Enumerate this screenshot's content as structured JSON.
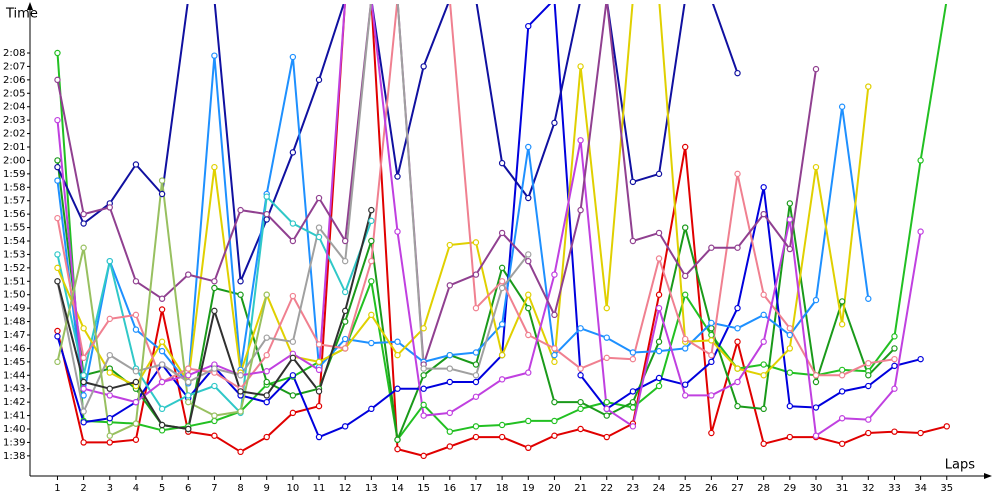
{
  "chart_data": {
    "type": "line",
    "y_label": "Time",
    "x_label": "Laps",
    "x": [
      1,
      2,
      3,
      4,
      5,
      6,
      7,
      8,
      9,
      10,
      11,
      12,
      13,
      14,
      15,
      16,
      17,
      18,
      19,
      20,
      21,
      22,
      23,
      24,
      25,
      26,
      27,
      28,
      29,
      30,
      31,
      32,
      33,
      34,
      35
    ],
    "xlim": [
      -0.05,
      36.5
    ],
    "xticks": [
      1,
      2,
      3,
      4,
      5,
      6,
      7,
      8,
      9,
      10,
      11,
      12,
      13,
      14,
      15,
      16,
      17,
      18,
      19,
      20,
      21,
      22,
      23,
      24,
      25,
      26,
      27,
      28,
      29,
      30,
      31,
      32,
      33,
      34,
      35
    ],
    "ylim": [
      96.5,
      131.5
    ],
    "yticks": [
      {
        "value": 98,
        "label": "1:38"
      },
      {
        "value": 99,
        "label": "1:39"
      },
      {
        "value": 100,
        "label": "1:40"
      },
      {
        "value": 101,
        "label": "1:41"
      },
      {
        "value": 102,
        "label": "1:42"
      },
      {
        "value": 103,
        "label": "1:43"
      },
      {
        "value": 104,
        "label": "1:44"
      },
      {
        "value": 105,
        "label": "1:45"
      },
      {
        "value": 106,
        "label": "1:46"
      },
      {
        "value": 107,
        "label": "1:47"
      },
      {
        "value": 108,
        "label": "1:48"
      },
      {
        "value": 109,
        "label": "1:49"
      },
      {
        "value": 110,
        "label": "1:50"
      },
      {
        "value": 111,
        "label": "1:51"
      },
      {
        "value": 112,
        "label": "1:52"
      },
      {
        "value": 113,
        "label": "1:53"
      },
      {
        "value": 114,
        "label": "1:54"
      },
      {
        "value": 115,
        "label": "1:55"
      },
      {
        "value": 116,
        "label": "1:56"
      },
      {
        "value": 117,
        "label": "1:57"
      },
      {
        "value": 118,
        "label": "1:58"
      },
      {
        "value": 119,
        "label": "1:59"
      },
      {
        "value": 120,
        "label": "2:00"
      },
      {
        "value": 121,
        "label": "2:01"
      },
      {
        "value": 122,
        "label": "2:02"
      },
      {
        "value": 123,
        "label": "2:03"
      },
      {
        "value": 124,
        "label": "2:04"
      },
      {
        "value": 125,
        "label": "2:05"
      },
      {
        "value": 126,
        "label": "2:06"
      },
      {
        "value": 127,
        "label": "2:07"
      },
      {
        "value": 128,
        "label": "2:08"
      }
    ],
    "series": [
      {
        "color": "#e00000",
        "values": [
          107.3,
          99.0,
          99.0,
          99.2,
          108.9,
          99.8,
          99.5,
          98.3,
          99.4,
          101.2,
          101.7,
          132,
          132,
          98.5,
          98.0,
          98.7,
          99.4,
          99.4,
          98.6,
          99.5,
          100.0,
          99.4,
          100.4,
          110,
          121,
          99.7,
          106.5,
          98.9,
          99.4,
          99.4,
          98.9,
          99.7,
          99.8,
          99.7,
          100.2
        ]
      },
      {
        "color": "#22c022",
        "values": [
          128,
          100.6,
          100.5,
          100.4,
          99.9,
          100.2,
          100.6,
          101.3,
          103.3,
          103.9,
          105.0,
          106.0,
          111,
          99.2,
          101.8,
          99.8,
          100.2,
          100.3,
          100.6,
          100.6,
          101.5,
          102.0,
          101.6,
          103.2,
          110,
          107,
          104.5,
          104.8,
          104.2,
          104.0,
          104.4,
          104.3,
          106.9,
          120,
          132
        ]
      },
      {
        "color": "#1a9a1a",
        "values": [
          120,
          104.0,
          104.5,
          103.0,
          100.3,
          100.0,
          110.5,
          110,
          103.5,
          102.5,
          103.0,
          108,
          114,
          99.2,
          104.0,
          105.5,
          104.8,
          112,
          109,
          102.0,
          102.0,
          101.0,
          102.0,
          106.5,
          115,
          107.5,
          101.7,
          101.5,
          116.8,
          103.5,
          109.5,
          104.0,
          106.0,
          null,
          null
        ]
      },
      {
        "color": "#0000dd",
        "values": [
          106.9,
          100.5,
          100.8,
          102.0,
          104.8,
          102.3,
          104.6,
          102.5,
          102.0,
          104.0,
          99.4,
          100.2,
          101.5,
          103.0,
          103.0,
          103.5,
          103.5,
          105.5,
          130,
          132,
          104.0,
          101.5,
          102.8,
          103.8,
          103.3,
          105.0,
          109.0,
          118,
          101.7,
          101.6,
          102.8,
          103.2,
          104.7,
          105.2,
          null
        ]
      },
      {
        "color": "#1010a0",
        "values": [
          119.5,
          115.3,
          116.8,
          119.7,
          117.5,
          132,
          132,
          111,
          115.6,
          120.6,
          126,
          132,
          132,
          118.8,
          127,
          132,
          132,
          119.8,
          117.2,
          122.8,
          132,
          132,
          118.4,
          119,
          132,
          132,
          126.5,
          null,
          null,
          null,
          null,
          null,
          null,
          null,
          null
        ]
      },
      {
        "color": "#1e90ff",
        "values": [
          118.5,
          102.5,
          112.5,
          107.4,
          105.8,
          103.4,
          127.8,
          104.4,
          117.5,
          127.7,
          104.6,
          106.7,
          106.4,
          106.5,
          105.0,
          105.5,
          105.7,
          107.8,
          121,
          105.5,
          107.5,
          106.8,
          105.7,
          105.8,
          106.0,
          107.9,
          107.5,
          108.5,
          107.0,
          109.6,
          124,
          109.7,
          null,
          null,
          null
        ]
      },
      {
        "color": "#30c8c8",
        "values": [
          113,
          104,
          112.5,
          104.5,
          101.5,
          102.5,
          103.2,
          101.2,
          117.3,
          115.3,
          114.3,
          110.2,
          115.5,
          null,
          null,
          null,
          null,
          null,
          null,
          null,
          null,
          null,
          null,
          null,
          null,
          null,
          null,
          null,
          null,
          null,
          null,
          null,
          null,
          null,
          null
        ]
      },
      {
        "color": "#e0d000",
        "values": [
          112,
          107.5,
          104.2,
          103.2,
          106.5,
          103.5,
          119.5,
          104.2,
          110,
          105.4,
          105.0,
          106.0,
          108.5,
          105.5,
          107.5,
          113.7,
          113.9,
          105.5,
          110,
          105,
          127,
          109,
          132,
          132,
          106.5,
          106.6,
          104.5,
          104.0,
          106.0,
          119.5,
          107.8,
          125.5,
          null,
          null,
          null
        ]
      },
      {
        "color": "#f08090",
        "values": [
          115.7,
          105.3,
          108.2,
          108.5,
          103.5,
          104.5,
          104.2,
          103.0,
          105.5,
          109.9,
          106.3,
          106.0,
          112.5,
          132,
          132,
          132,
          109,
          111,
          107,
          106,
          104.5,
          105.3,
          105.2,
          112.7,
          106.7,
          105.5,
          119,
          110,
          107.5,
          104.0,
          104.0,
          104.9,
          105.2,
          null,
          null
        ]
      },
      {
        "color": "#c040e0",
        "values": [
          123,
          103.0,
          102.5,
          102.0,
          103.5,
          104.0,
          104.8,
          104.0,
          104.3,
          105.6,
          104.4,
          132,
          132,
          114.7,
          101.0,
          101.2,
          102.4,
          103.7,
          104.2,
          111.5,
          121.5,
          101.5,
          100.2,
          109,
          102.5,
          102.5,
          103.5,
          106.5,
          115.6,
          99.5,
          100.8,
          100.7,
          103.0,
          114.7,
          null
        ]
      },
      {
        "color": "#904090",
        "values": [
          126,
          116.0,
          116.5,
          111.0,
          109.7,
          111.5,
          111.0,
          116.3,
          116.0,
          114.0,
          117.2,
          114.0,
          132,
          132,
          104.8,
          110.7,
          111.5,
          114.6,
          112.5,
          108.5,
          116.3,
          132,
          114.0,
          114.6,
          111.4,
          113.5,
          113.5,
          116.0,
          113.4,
          126.8,
          null,
          null,
          null,
          null,
          null
        ]
      },
      {
        "color": "#a0a0a0",
        "values": [
          111,
          101.3,
          105.5,
          104.3,
          104.8,
          103.5,
          104.5,
          104.0,
          106.8,
          106.5,
          115.0,
          112.5,
          132,
          132,
          104.5,
          104.5,
          104.0,
          110.5,
          113.0,
          null,
          null,
          null,
          null,
          null,
          null,
          null,
          null,
          null,
          null,
          null,
          null,
          null,
          null,
          null,
          null
        ]
      },
      {
        "color": "#98c060",
        "values": [
          105,
          113.5,
          99.5,
          100.4,
          118.5,
          102.0,
          101.0,
          101.3,
          110.0,
          null,
          null,
          null,
          null,
          null,
          null,
          null,
          null,
          null,
          null,
          null,
          null,
          null,
          null,
          null,
          null,
          null,
          null,
          null,
          null,
          null,
          null,
          null,
          null,
          null,
          null
        ]
      },
      {
        "color": "#303030",
        "values": [
          111,
          103.5,
          103.0,
          103.5,
          100.3,
          100.0,
          108.8,
          102.8,
          102.5,
          105.3,
          102.8,
          108.8,
          116.3,
          null,
          null,
          null,
          null,
          null,
          null,
          null,
          null,
          null,
          null,
          null,
          null,
          null,
          null,
          null,
          null,
          null,
          null,
          null,
          null,
          null,
          null
        ]
      }
    ]
  }
}
